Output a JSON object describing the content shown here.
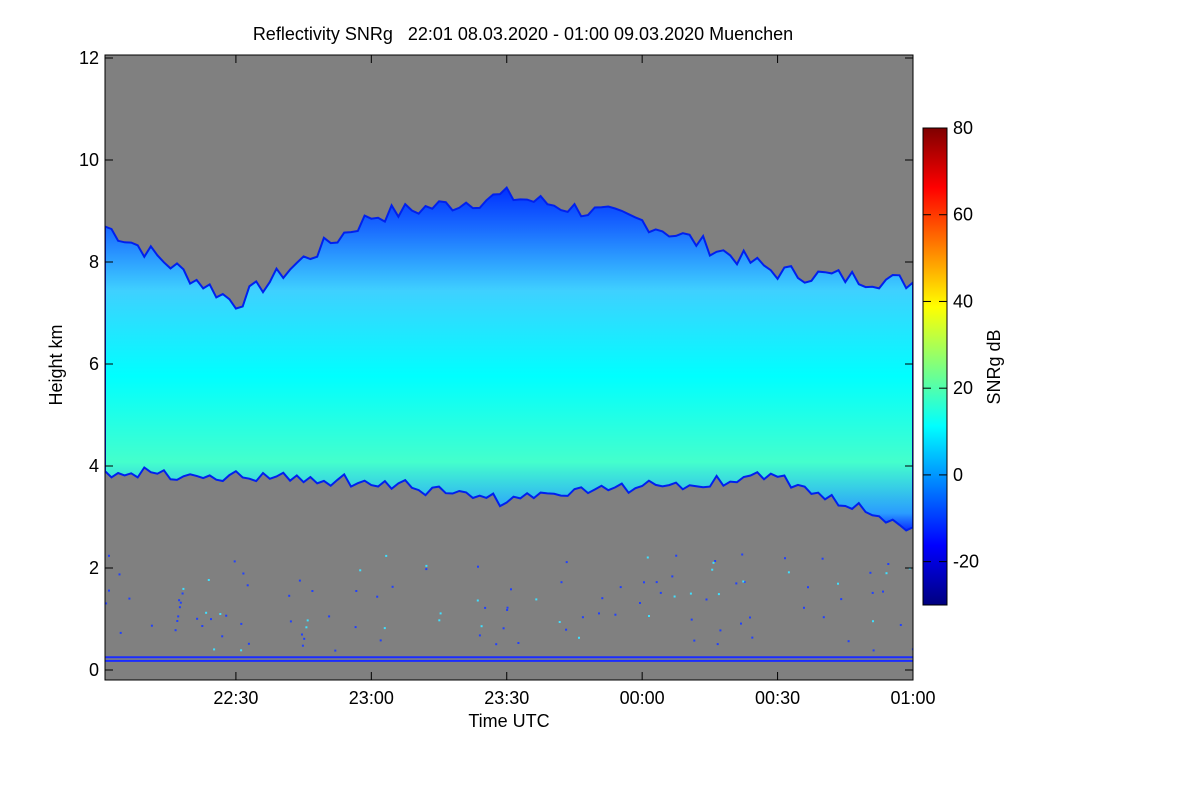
{
  "chart_data": {
    "type": "heatmap",
    "title": "Reflectivity SNRg   22:01 08.03.2020 - 01:00 09.03.2020 Muenchen",
    "xlabel": "Time UTC",
    "ylabel": "Height km",
    "xlim": [
      "22:01",
      "01:00"
    ],
    "ylim": [
      0,
      12
    ],
    "x_ticks": [
      "22:30",
      "23:00",
      "23:30",
      "00:00",
      "00:30",
      "01:00"
    ],
    "y_ticks": [
      0,
      2,
      4,
      6,
      8,
      10,
      12
    ],
    "background_color": "#808080",
    "colorbar": {
      "label": "SNRg dB",
      "range": [
        -30,
        80
      ],
      "ticks": [
        -20,
        0,
        20,
        40,
        60,
        80
      ],
      "colormap": [
        "#00007f",
        "#0000ff",
        "#007fff",
        "#00ffff",
        "#7fff7f",
        "#ffff00",
        "#ff7f00",
        "#ff0000",
        "#7f0000"
      ]
    },
    "cloud_layer": {
      "description_values_km": {
        "times": [
          "22:01",
          "22:30",
          "23:00",
          "23:30",
          "00:00",
          "00:30",
          "01:00"
        ],
        "base_km": [
          3.9,
          3.8,
          3.7,
          3.3,
          3.6,
          3.8,
          2.8
        ],
        "top_km": [
          8.7,
          7.2,
          8.9,
          9.3,
          8.8,
          7.8,
          7.6
        ]
      },
      "typical_snr_db": {
        "core": 15,
        "edge": -15
      }
    }
  }
}
